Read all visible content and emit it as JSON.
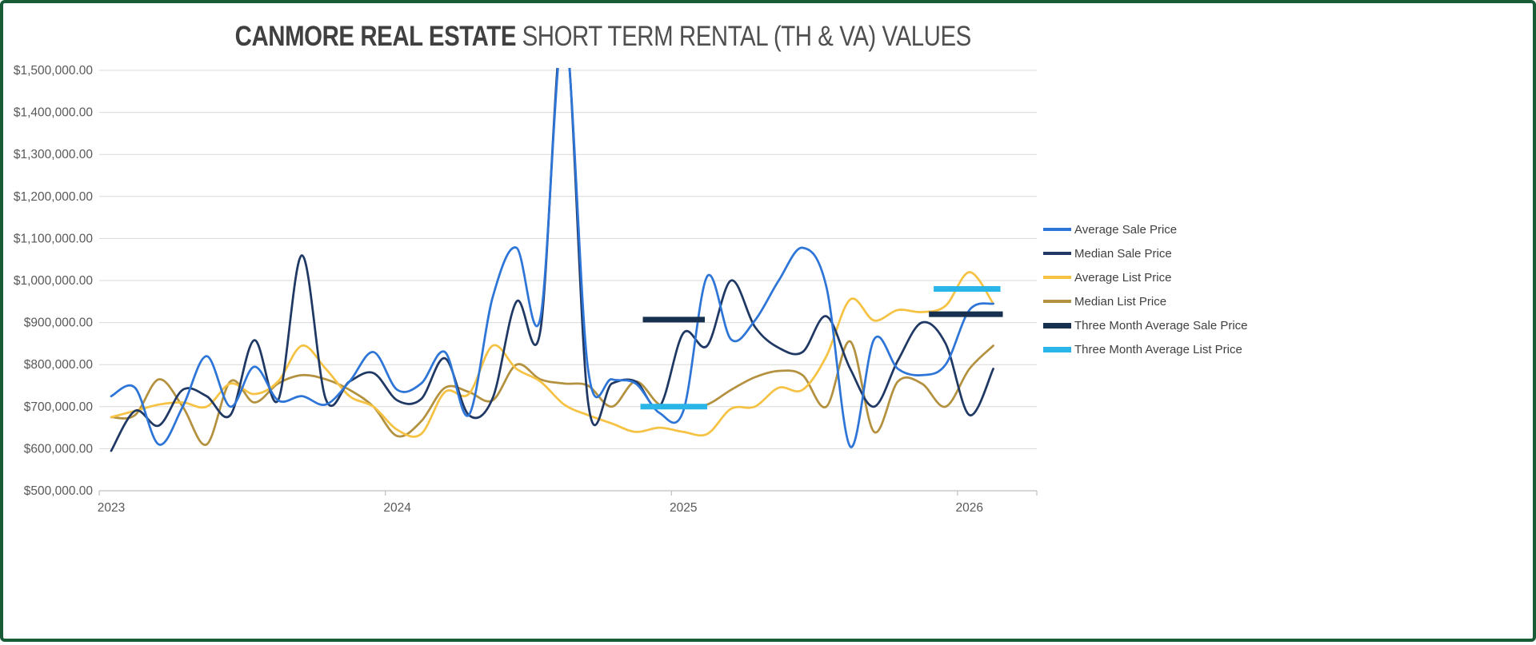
{
  "colors": {
    "frame": "#175c37",
    "gridline": "#d9d9d9",
    "axis": "#bfbfbf",
    "tick_label": "#595959",
    "title_bold": "#404040",
    "title_regular": "#4f4f4f"
  },
  "chart_data": {
    "type": "line",
    "title_bold": "CANMORE REAL ESTATE",
    "title_regular": "SHORT TERM RENTAL (TH & VA) VALUES",
    "legend_position": "right",
    "grid": "horizontal",
    "y_axis": {
      "min": 500000,
      "max": 1500000,
      "tick_step": 100000,
      "tick_labels": [
        "$1,500,000.00",
        "$1,400,000.00",
        "$1,300,000.00",
        "$1,200,000.00",
        "$1,100,000.00",
        "$1,000,000.00",
        "$900,000.00",
        "$800,000.00",
        "$700,000.00",
        "$600,000.00",
        "$500,000.00"
      ]
    },
    "x_axis": {
      "ticks": [
        {
          "label": "2023",
          "month_index": 0
        },
        {
          "label": "2024",
          "month_index": 12
        },
        {
          "label": "2025",
          "month_index": 24
        },
        {
          "label": "2026",
          "month_index": 36
        }
      ]
    },
    "months": [
      "Jan 2023",
      "Feb 2023",
      "Mar 2023",
      "Apr 2023",
      "May 2023",
      "Jun 2023",
      "Jul 2023",
      "Aug 2023",
      "Sep 2023",
      "Oct 2023",
      "Nov 2023",
      "Dec 2023",
      "Jan 2024",
      "Feb 2024",
      "Mar 2024",
      "Apr 2024",
      "May 2024",
      "Jun 2024",
      "Jul 2024",
      "Aug 2024",
      "Sep 2024",
      "Oct 2024",
      "Nov 2024",
      "Dec 2024",
      "Jan 2025",
      "Feb 2025",
      "Mar 2025",
      "Apr 2025",
      "May 2025",
      "Jun 2025",
      "Jul 2025",
      "Aug 2025",
      "Sep 2025",
      "Oct 2025",
      "Nov 2025",
      "Dec 2025",
      "Jan 2026",
      "Feb 2026"
    ],
    "series": [
      {
        "name": "Average Sale Price",
        "color": "#2e75d8",
        "type": "line",
        "values": [
          725000,
          745000,
          610000,
          700000,
          820000,
          700000,
          795000,
          715000,
          725000,
          705000,
          760000,
          830000,
          740000,
          755000,
          830000,
          680000,
          960000,
          1078000,
          910000,
          1600000,
          790000,
          765000,
          755000,
          685000,
          690000,
          1010000,
          860000,
          905000,
          1000000,
          1078000,
          985000,
          605000,
          860000,
          790000,
          775000,
          800000,
          930000,
          945000
        ]
      },
      {
        "name": "Median Sale Price",
        "color": "#1f3864",
        "type": "line",
        "values": [
          595000,
          690000,
          655000,
          740000,
          725000,
          680000,
          858000,
          715000,
          1060000,
          718000,
          760000,
          780000,
          715000,
          718000,
          815000,
          680000,
          720000,
          950000,
          880000,
          1620000,
          712000,
          755000,
          760000,
          700000,
          875000,
          845000,
          1000000,
          890000,
          840000,
          830000,
          915000,
          790000,
          700000,
          810000,
          900000,
          850000,
          680000,
          790000
        ]
      },
      {
        "name": "Average List Price",
        "color": "#f5c243",
        "type": "line",
        "values": [
          675000,
          690000,
          705000,
          710000,
          700000,
          755000,
          730000,
          760000,
          845000,
          790000,
          725000,
          700000,
          645000,
          635000,
          735000,
          730000,
          845000,
          790000,
          760000,
          705000,
          680000,
          660000,
          640000,
          650000,
          640000,
          635000,
          695000,
          700000,
          745000,
          740000,
          820000,
          955000,
          905000,
          930000,
          925000,
          940000,
          1020000,
          945000
        ]
      },
      {
        "name": "Median List Price",
        "color": "#b3913f",
        "type": "line",
        "values": [
          675000,
          680000,
          765000,
          700000,
          610000,
          760000,
          710000,
          755000,
          775000,
          765000,
          740000,
          700000,
          630000,
          665000,
          745000,
          735000,
          715000,
          800000,
          765000,
          755000,
          750000,
          700000,
          760000,
          705000,
          700000,
          705000,
          740000,
          770000,
          785000,
          775000,
          700000,
          855000,
          640000,
          760000,
          755000,
          700000,
          790000,
          845000
        ]
      },
      {
        "name": "Three Month Average Sale Price",
        "color": "#17304f",
        "type": "segments",
        "segments": [
          {
            "value": 907000,
            "from": 22.3,
            "to": 24.9
          },
          {
            "value": 920000,
            "from": 34.3,
            "to": 37.4
          }
        ]
      },
      {
        "name": "Three Month Average List Price",
        "color": "#29b5e8",
        "type": "segments",
        "segments": [
          {
            "value": 700000,
            "from": 22.2,
            "to": 25.0
          },
          {
            "value": 980000,
            "from": 34.5,
            "to": 37.3
          }
        ]
      }
    ]
  }
}
